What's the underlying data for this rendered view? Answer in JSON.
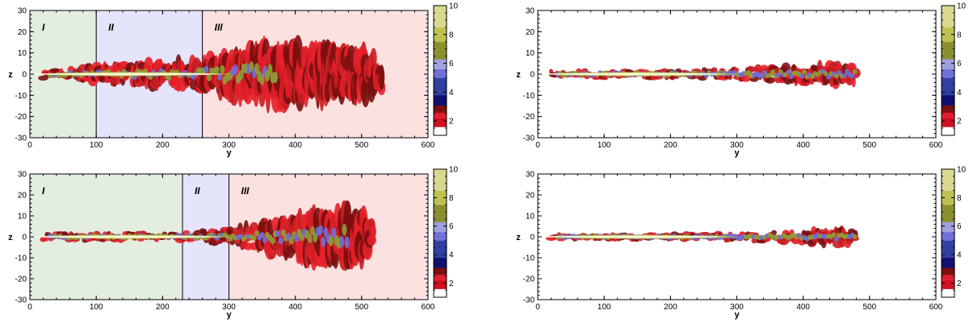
{
  "chart_data": [
    {
      "type": "heatmap",
      "xlabel": "y",
      "ylabel": "z",
      "xlim": [
        0,
        600
      ],
      "ylim": [
        -30,
        30
      ],
      "xticks": [
        0,
        100,
        200,
        300,
        400,
        500,
        600
      ],
      "yticks": [
        -30,
        -20,
        -10,
        0,
        10,
        20,
        30
      ],
      "colorbar": {
        "range": [
          1,
          10
        ],
        "ticks": [
          2,
          4,
          6,
          8,
          10
        ]
      },
      "regions": [
        {
          "label": "I",
          "from": 0,
          "to": 100,
          "color": "#e3ede0"
        },
        {
          "label": "II",
          "from": 100,
          "to": 260,
          "color": "#e4e4fb"
        },
        {
          "label": "III",
          "from": 260,
          "to": 600,
          "color": "#fce1e1"
        }
      ],
      "jet": {
        "core_end": 370,
        "extent": 530,
        "profile": [
          [
            0,
            2.5
          ],
          [
            50,
            3
          ],
          [
            100,
            5
          ],
          [
            150,
            6
          ],
          [
            200,
            7
          ],
          [
            250,
            8
          ],
          [
            300,
            12
          ],
          [
            350,
            15
          ],
          [
            400,
            15
          ],
          [
            450,
            15
          ],
          [
            500,
            13
          ],
          [
            530,
            10
          ]
        ]
      }
    },
    {
      "type": "heatmap",
      "xlabel": "y",
      "ylabel": "z",
      "xlim": [
        0,
        600
      ],
      "ylim": [
        -30,
        30
      ],
      "xticks": [
        0,
        100,
        200,
        300,
        400,
        500,
        600
      ],
      "yticks": [
        -30,
        -20,
        -10,
        0,
        10,
        20,
        30
      ],
      "colorbar": {
        "range": [
          1,
          10
        ],
        "ticks": [
          2,
          4,
          6,
          8,
          10
        ]
      },
      "regions": [],
      "jet": {
        "core_end": 480,
        "extent": 480,
        "profile": [
          [
            0,
            2
          ],
          [
            100,
            2.5
          ],
          [
            200,
            2.5
          ],
          [
            300,
            3
          ],
          [
            340,
            4
          ],
          [
            400,
            5
          ],
          [
            450,
            6
          ],
          [
            480,
            5
          ]
        ]
      }
    },
    {
      "type": "heatmap",
      "xlabel": "y",
      "ylabel": "z",
      "xlim": [
        0,
        600
      ],
      "ylim": [
        -30,
        30
      ],
      "xticks": [
        0,
        100,
        200,
        300,
        400,
        500,
        600
      ],
      "yticks": [
        -30,
        -20,
        -10,
        0,
        10,
        20,
        30
      ],
      "colorbar": {
        "range": [
          1,
          10
        ],
        "ticks": [
          2,
          4,
          6,
          8,
          10
        ]
      },
      "regions": [
        {
          "label": "I",
          "from": 0,
          "to": 230,
          "color": "#e3ede0"
        },
        {
          "label": "II",
          "from": 230,
          "to": 300,
          "color": "#e4e4fb"
        },
        {
          "label": "III",
          "from": 300,
          "to": 600,
          "color": "#fce1e1"
        }
      ],
      "jet": {
        "core_end": 480,
        "extent": 520,
        "profile": [
          [
            0,
            2
          ],
          [
            100,
            2.5
          ],
          [
            200,
            2.5
          ],
          [
            250,
            3
          ],
          [
            300,
            5
          ],
          [
            350,
            8
          ],
          [
            400,
            11
          ],
          [
            450,
            14
          ],
          [
            480,
            16
          ],
          [
            510,
            12
          ],
          [
            520,
            6
          ]
        ]
      }
    },
    {
      "type": "heatmap",
      "xlabel": "y",
      "ylabel": "z",
      "xlim": [
        0,
        600
      ],
      "ylim": [
        -30,
        30
      ],
      "xticks": [
        0,
        100,
        200,
        300,
        400,
        500,
        600
      ],
      "yticks": [
        -30,
        -20,
        -10,
        0,
        10,
        20,
        30
      ],
      "colorbar": {
        "range": [
          1,
          10
        ],
        "ticks": [
          2,
          4,
          6,
          8,
          10
        ]
      },
      "regions": [],
      "jet": {
        "core_end": 480,
        "extent": 480,
        "profile": [
          [
            0,
            1.5
          ],
          [
            100,
            1.5
          ],
          [
            200,
            2
          ],
          [
            300,
            2.5
          ],
          [
            350,
            3
          ],
          [
            400,
            4
          ],
          [
            450,
            5
          ],
          [
            480,
            4
          ]
        ]
      }
    }
  ]
}
